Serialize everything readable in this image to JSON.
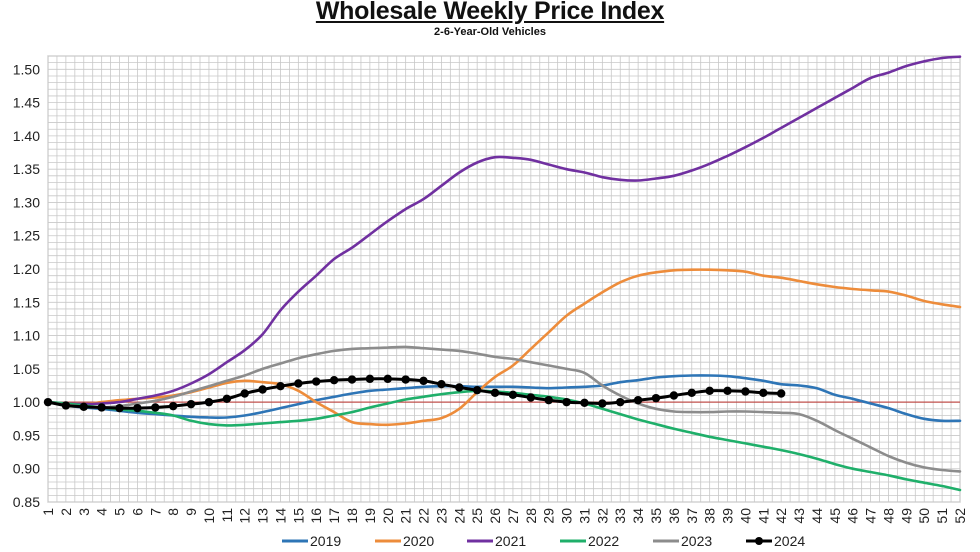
{
  "chart_data": {
    "type": "line",
    "title": "Wholesale Weekly Price Index",
    "subtitle": "2-6-Year-Old Vehicles",
    "xlabel": "",
    "ylabel": "",
    "xlim": [
      1,
      52
    ],
    "ylim": [
      0.85,
      1.52
    ],
    "y_ticks": [
      "0.85",
      "0.90",
      "0.95",
      "1.00",
      "1.05",
      "1.10",
      "1.15",
      "1.20",
      "1.25",
      "1.30",
      "1.35",
      "1.40",
      "1.45",
      "1.50"
    ],
    "x_ticks": [
      "1",
      "2",
      "3",
      "4",
      "5",
      "6",
      "7",
      "8",
      "9",
      "10",
      "11",
      "12",
      "13",
      "14",
      "15",
      "16",
      "17",
      "18",
      "19",
      "20",
      "21",
      "22",
      "23",
      "24",
      "25",
      "26",
      "27",
      "28",
      "29",
      "30",
      "31",
      "32",
      "33",
      "34",
      "35",
      "36",
      "37",
      "38",
      "39",
      "40",
      "41",
      "42",
      "43",
      "44",
      "45",
      "46",
      "47",
      "48",
      "49",
      "50",
      "51",
      "52"
    ],
    "grid": true,
    "reference_line": 1.0,
    "legend_position": "bottom",
    "series": [
      {
        "name": "2019",
        "color": "#2E75B6",
        "markers": false,
        "values": [
          1.0,
          0.995,
          0.992,
          0.99,
          0.987,
          0.984,
          0.982,
          0.98,
          0.978,
          0.977,
          0.977,
          0.98,
          0.985,
          0.991,
          0.997,
          1.003,
          1.008,
          1.013,
          1.017,
          1.019,
          1.021,
          1.023,
          1.024,
          1.024,
          1.023,
          1.023,
          1.023,
          1.022,
          1.021,
          1.022,
          1.023,
          1.025,
          1.03,
          1.033,
          1.037,
          1.039,
          1.04,
          1.04,
          1.039,
          1.036,
          1.032,
          1.027,
          1.025,
          1.021,
          1.011,
          1.005,
          0.998,
          0.991,
          0.982,
          0.975,
          0.972,
          0.972
        ]
      },
      {
        "name": "2020",
        "color": "#ED8C3B",
        "markers": false,
        "values": [
          1.0,
          0.998,
          0.997,
          1.0,
          1.003,
          1.005,
          1.007,
          1.01,
          1.015,
          1.022,
          1.029,
          1.032,
          1.03,
          1.027,
          1.017,
          1.0,
          0.985,
          0.97,
          0.967,
          0.966,
          0.968,
          0.972,
          0.976,
          0.99,
          1.015,
          1.038,
          1.055,
          1.08,
          1.105,
          1.13,
          1.148,
          1.165,
          1.18,
          1.19,
          1.195,
          1.198,
          1.199,
          1.199,
          1.198,
          1.196,
          1.19,
          1.187,
          1.182,
          1.177,
          1.173,
          1.17,
          1.168,
          1.166,
          1.16,
          1.152,
          1.147,
          1.143
        ]
      },
      {
        "name": "2021",
        "color": "#7030A0",
        "markers": false,
        "values": [
          1.0,
          0.998,
          0.997,
          0.998,
          1.0,
          1.005,
          1.01,
          1.017,
          1.028,
          1.042,
          1.06,
          1.078,
          1.102,
          1.138,
          1.166,
          1.19,
          1.215,
          1.232,
          1.252,
          1.272,
          1.29,
          1.305,
          1.325,
          1.345,
          1.36,
          1.368,
          1.367,
          1.364,
          1.357,
          1.35,
          1.345,
          1.338,
          1.334,
          1.333,
          1.336,
          1.34,
          1.348,
          1.358,
          1.37,
          1.383,
          1.397,
          1.412,
          1.427,
          1.442,
          1.457,
          1.472,
          1.487,
          1.495,
          1.505,
          1.512,
          1.517,
          1.519
        ]
      },
      {
        "name": "2022",
        "color": "#1FAF6A",
        "markers": false,
        "values": [
          1.0,
          0.998,
          0.995,
          0.992,
          0.989,
          0.987,
          0.984,
          0.98,
          0.972,
          0.967,
          0.965,
          0.966,
          0.968,
          0.97,
          0.972,
          0.975,
          0.98,
          0.985,
          0.992,
          0.998,
          1.004,
          1.008,
          1.012,
          1.015,
          1.017,
          1.016,
          1.014,
          1.011,
          1.008,
          1.004,
          0.998,
          0.99,
          0.982,
          0.974,
          0.967,
          0.96,
          0.954,
          0.948,
          0.943,
          0.938,
          0.933,
          0.928,
          0.922,
          0.915,
          0.907,
          0.9,
          0.895,
          0.89,
          0.884,
          0.879,
          0.874,
          0.868
        ]
      },
      {
        "name": "2023",
        "color": "#8C8C8C",
        "markers": false,
        "values": [
          1.0,
          0.996,
          0.993,
          0.992,
          0.994,
          0.998,
          1.002,
          1.008,
          1.016,
          1.024,
          1.032,
          1.04,
          1.05,
          1.058,
          1.066,
          1.072,
          1.077,
          1.08,
          1.081,
          1.082,
          1.083,
          1.081,
          1.079,
          1.077,
          1.073,
          1.068,
          1.065,
          1.06,
          1.055,
          1.05,
          1.044,
          1.025,
          1.01,
          0.998,
          0.99,
          0.986,
          0.985,
          0.985,
          0.986,
          0.986,
          0.985,
          0.984,
          0.982,
          0.972,
          0.958,
          0.945,
          0.932,
          0.919,
          0.909,
          0.902,
          0.898,
          0.896
        ]
      },
      {
        "name": "2024",
        "color": "#000000",
        "markers": true,
        "values": [
          1.0,
          0.995,
          0.993,
          0.992,
          0.991,
          0.991,
          0.992,
          0.994,
          0.997,
          1.0,
          1.005,
          1.013,
          1.019,
          1.024,
          1.028,
          1.031,
          1.033,
          1.034,
          1.035,
          1.035,
          1.034,
          1.032,
          1.027,
          1.022,
          1.018,
          1.014,
          1.011,
          1.007,
          1.003,
          1.0,
          0.999,
          0.998,
          1.0,
          1.003,
          1.006,
          1.01,
          1.014,
          1.017,
          1.017,
          1.016,
          1.014,
          1.013
        ]
      }
    ]
  }
}
